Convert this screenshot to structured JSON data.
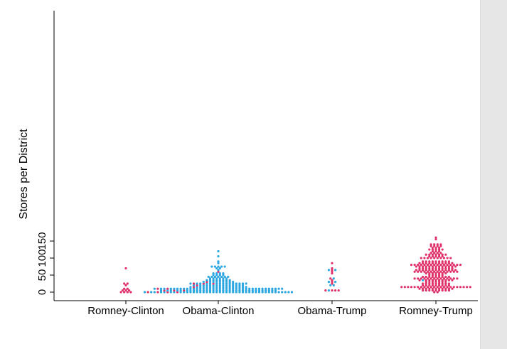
{
  "chart_data": {
    "type": "scatter",
    "subtype": "dot-strip (beeswarm)",
    "title": "",
    "xlabel": "",
    "ylabel": "Stores per District",
    "ylim": [
      0,
      165
    ],
    "yticks": [
      0,
      50,
      100,
      150
    ],
    "categories": [
      "Romney-Clinton",
      "Obama-Clinton",
      "Obama-Trump",
      "Romney-Trump"
    ],
    "grid": false,
    "legend": "none",
    "colors": {
      "blue": "#2aa6e0",
      "red": "#e0306a"
    },
    "dot_unit": 5,
    "groups": [
      {
        "category": "Romney-Clinton",
        "rows": [
          {
            "y": 0,
            "red": 4,
            "blue": 0
          },
          {
            "y": 5,
            "red": 3,
            "blue": 0
          },
          {
            "y": 10,
            "red": 2,
            "blue": 0
          },
          {
            "y": 20,
            "red": 1,
            "blue": 0
          },
          {
            "y": 25,
            "red": 2,
            "blue": 0
          },
          {
            "y": 70,
            "red": 1,
            "blue": 0
          }
        ]
      },
      {
        "category": "Obama-Clinton",
        "rows": [
          {
            "y": 0,
            "red": 4,
            "blue": 42
          },
          {
            "y": 5,
            "red": 3,
            "blue": 33
          },
          {
            "y": 10,
            "red": 2,
            "blue": 38
          },
          {
            "y": 15,
            "red": 1,
            "blue": 17
          },
          {
            "y": 20,
            "red": 1,
            "blue": 15
          },
          {
            "y": 25,
            "red": 3,
            "blue": 15
          },
          {
            "y": 30,
            "red": 1,
            "blue": 9
          },
          {
            "y": 35,
            "red": 0,
            "blue": 8
          },
          {
            "y": 40,
            "red": 0,
            "blue": 6
          },
          {
            "y": 45,
            "red": 0,
            "blue": 7
          },
          {
            "y": 50,
            "red": 0,
            "blue": 4
          },
          {
            "y": 55,
            "red": 0,
            "blue": 4
          },
          {
            "y": 60,
            "red": 1,
            "blue": 0
          },
          {
            "y": 65,
            "red": 0,
            "blue": 1
          },
          {
            "y": 70,
            "red": 0,
            "blue": 2
          },
          {
            "y": 75,
            "red": 0,
            "blue": 5
          },
          {
            "y": 85,
            "red": 0,
            "blue": 1
          },
          {
            "y": 90,
            "red": 0,
            "blue": 1
          },
          {
            "y": 105,
            "red": 0,
            "blue": 1
          },
          {
            "y": 120,
            "red": 0,
            "blue": 1
          }
        ]
      },
      {
        "category": "Obama-Trump",
        "rows": [
          {
            "y": 5,
            "red": 4,
            "blue": 1
          },
          {
            "y": 20,
            "red": 0,
            "blue": 2
          },
          {
            "y": 25,
            "red": 1,
            "blue": 0
          },
          {
            "y": 30,
            "red": 1,
            "blue": 2
          },
          {
            "y": 35,
            "red": 1,
            "blue": 0
          },
          {
            "y": 40,
            "red": 1,
            "blue": 1
          },
          {
            "y": 55,
            "red": 1,
            "blue": 0
          },
          {
            "y": 60,
            "red": 1,
            "blue": 0
          },
          {
            "y": 65,
            "red": 1,
            "blue": 2
          },
          {
            "y": 70,
            "red": 1,
            "blue": 0
          },
          {
            "y": 85,
            "red": 1,
            "blue": 0
          }
        ]
      },
      {
        "category": "Romney-Trump",
        "rows": [
          {
            "y": 0,
            "red": 2,
            "blue": 0
          },
          {
            "y": 5,
            "red": 9,
            "blue": 0
          },
          {
            "y": 10,
            "red": 11,
            "blue": 0
          },
          {
            "y": 15,
            "red": 22,
            "blue": 0
          },
          {
            "y": 20,
            "red": 9,
            "blue": 0
          },
          {
            "y": 25,
            "red": 9,
            "blue": 0
          },
          {
            "y": 30,
            "red": 7,
            "blue": 0
          },
          {
            "y": 35,
            "red": 10,
            "blue": 1
          },
          {
            "y": 40,
            "red": 14,
            "blue": 0
          },
          {
            "y": 45,
            "red": 9,
            "blue": 0
          },
          {
            "y": 50,
            "red": 5,
            "blue": 0
          },
          {
            "y": 55,
            "red": 7,
            "blue": 0
          },
          {
            "y": 60,
            "red": 14,
            "blue": 0
          },
          {
            "y": 65,
            "red": 13,
            "blue": 0
          },
          {
            "y": 70,
            "red": 11,
            "blue": 0
          },
          {
            "y": 75,
            "red": 13,
            "blue": 0
          },
          {
            "y": 80,
            "red": 16,
            "blue": 0
          },
          {
            "y": 85,
            "red": 11,
            "blue": 0
          },
          {
            "y": 90,
            "red": 9,
            "blue": 0
          },
          {
            "y": 100,
            "red": 10,
            "blue": 0
          },
          {
            "y": 105,
            "red": 5,
            "blue": 0
          },
          {
            "y": 110,
            "red": 7,
            "blue": 0
          },
          {
            "y": 115,
            "red": 4,
            "blue": 0
          },
          {
            "y": 120,
            "red": 3,
            "blue": 0
          },
          {
            "y": 125,
            "red": 5,
            "blue": 0
          },
          {
            "y": 130,
            "red": 3,
            "blue": 0
          },
          {
            "y": 135,
            "red": 4,
            "blue": 0
          },
          {
            "y": 140,
            "red": 4,
            "blue": 0
          },
          {
            "y": 155,
            "red": 1,
            "blue": 0
          },
          {
            "y": 160,
            "red": 1,
            "blue": 0
          }
        ]
      }
    ]
  }
}
